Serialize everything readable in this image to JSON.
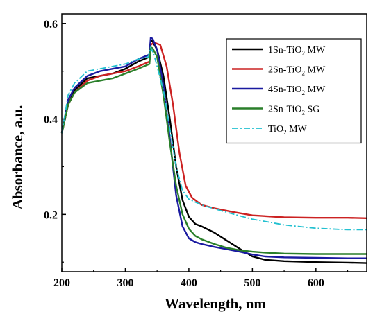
{
  "chart_data": {
    "type": "line",
    "title": "",
    "xlabel": "Wavelength, nm",
    "ylabel": "Absorbance, a.u.",
    "xlim": [
      200,
      680
    ],
    "ylim": [
      0.08,
      0.62
    ],
    "x_ticks": [
      200,
      300,
      400,
      500,
      600
    ],
    "y_ticks": [
      0.2,
      0.4,
      0.6
    ],
    "x_tick_labels": [
      "200",
      "300",
      "400",
      "500",
      "600"
    ],
    "y_tick_labels": [
      "0.2",
      "0.4",
      "0.6"
    ],
    "grid": false,
    "legend_position": "top-right",
    "series": [
      {
        "legend_main": "1Sn-TiO",
        "legend_sub": "2",
        "legend_rest": " MW",
        "color": "#000000",
        "dash": "solid",
        "x": [
          200,
          210,
          220,
          240,
          260,
          280,
          300,
          320,
          338,
          340,
          343,
          350,
          360,
          370,
          380,
          390,
          400,
          410,
          420,
          440,
          460,
          480,
          500,
          520,
          550,
          600,
          650,
          680
        ],
        "y": [
          0.37,
          0.43,
          0.46,
          0.485,
          0.49,
          0.495,
          0.505,
          0.52,
          0.53,
          0.565,
          0.562,
          0.545,
          0.49,
          0.4,
          0.3,
          0.23,
          0.195,
          0.18,
          0.175,
          0.162,
          0.145,
          0.128,
          0.112,
          0.105,
          0.102,
          0.1,
          0.099,
          0.098
        ]
      },
      {
        "legend_main": "2Sn-TiO",
        "legend_sub": "2",
        "legend_rest": " MW",
        "color": "#cc2222",
        "dash": "solid",
        "x": [
          200,
          210,
          220,
          240,
          260,
          280,
          300,
          320,
          338,
          340,
          345,
          355,
          365,
          375,
          385,
          395,
          405,
          420,
          440,
          470,
          500,
          550,
          600,
          650,
          680
        ],
        "y": [
          0.37,
          0.43,
          0.455,
          0.48,
          0.49,
          0.495,
          0.5,
          0.51,
          0.52,
          0.555,
          0.56,
          0.555,
          0.51,
          0.43,
          0.33,
          0.26,
          0.235,
          0.22,
          0.213,
          0.205,
          0.198,
          0.194,
          0.193,
          0.193,
          0.192
        ]
      },
      {
        "legend_main": "4Sn-TiO",
        "legend_sub": "2",
        "legend_rest": " MW",
        "color": "#1a1aa0",
        "dash": "solid",
        "x": [
          200,
          210,
          220,
          240,
          260,
          280,
          300,
          320,
          338,
          340,
          343,
          350,
          360,
          370,
          380,
          390,
          400,
          410,
          420,
          440,
          460,
          480,
          500,
          520,
          550,
          600,
          650,
          680
        ],
        "y": [
          0.37,
          0.44,
          0.465,
          0.49,
          0.5,
          0.505,
          0.51,
          0.525,
          0.535,
          0.57,
          0.568,
          0.545,
          0.47,
          0.36,
          0.24,
          0.175,
          0.15,
          0.142,
          0.138,
          0.132,
          0.127,
          0.122,
          0.116,
          0.112,
          0.11,
          0.109,
          0.108,
          0.108
        ]
      },
      {
        "legend_main": "2Sn-TiO",
        "legend_sub": "2",
        "legend_rest": " SG",
        "color": "#2a7f2a",
        "dash": "solid",
        "x": [
          200,
          210,
          220,
          240,
          260,
          280,
          300,
          320,
          338,
          340,
          343,
          350,
          360,
          370,
          380,
          390,
          400,
          410,
          420,
          440,
          460,
          480,
          500,
          520,
          550,
          600,
          650,
          680
        ],
        "y": [
          0.37,
          0.43,
          0.455,
          0.475,
          0.48,
          0.485,
          0.495,
          0.505,
          0.515,
          0.55,
          0.548,
          0.53,
          0.45,
          0.35,
          0.26,
          0.2,
          0.17,
          0.155,
          0.148,
          0.138,
          0.13,
          0.125,
          0.122,
          0.12,
          0.118,
          0.117,
          0.117,
          0.117
        ]
      },
      {
        "legend_main": "TiO",
        "legend_sub": "2",
        "legend_rest": " MW",
        "color": "#22c0d0",
        "dash": "dashdot",
        "x": [
          200,
          210,
          220,
          240,
          260,
          280,
          300,
          320,
          336,
          340,
          345,
          350,
          360,
          370,
          380,
          390,
          400,
          420,
          450,
          480,
          500,
          550,
          600,
          650,
          680
        ],
        "y": [
          0.37,
          0.45,
          0.475,
          0.5,
          0.505,
          0.51,
          0.515,
          0.525,
          0.53,
          0.55,
          0.535,
          0.51,
          0.46,
          0.38,
          0.3,
          0.25,
          0.232,
          0.22,
          0.208,
          0.197,
          0.19,
          0.178,
          0.171,
          0.168,
          0.168
        ]
      }
    ]
  }
}
